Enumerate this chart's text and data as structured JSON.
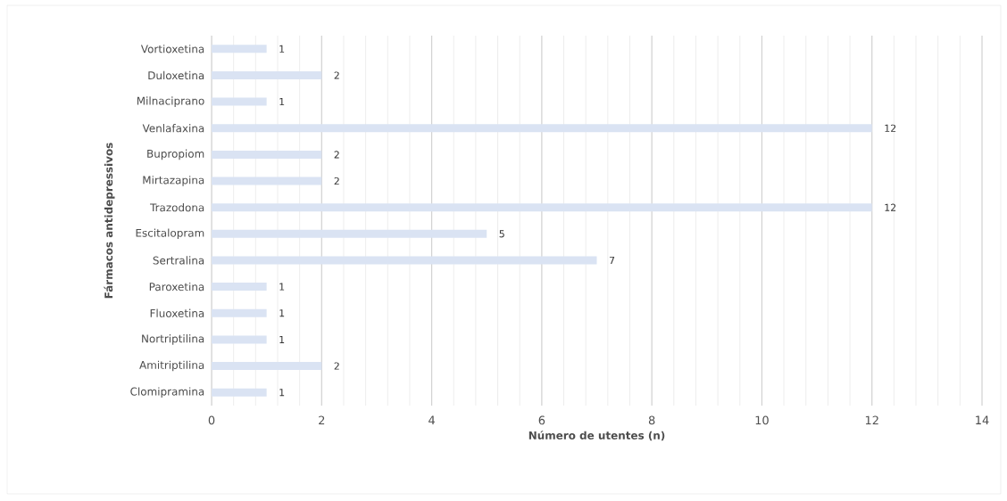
{
  "chart_data": {
    "type": "bar",
    "orientation": "horizontal",
    "xlabel": "Número de utentes (n)",
    "ylabel": "Fármacos antidepressivos",
    "categories": [
      "Vortioxetina",
      "Duloxetina",
      "Milnaciprano",
      "Venlafaxina",
      "Bupropiom",
      "Mirtazapina",
      "Trazodona",
      "Escitalopram",
      "Sertralina",
      "Paroxetina",
      "Fluoxetina",
      "Nortriptilina",
      "Amitriptilina",
      "Clomipramina"
    ],
    "values": [
      1,
      2,
      1,
      12,
      2,
      2,
      12,
      5,
      7,
      1,
      1,
      1,
      2,
      1
    ],
    "color": "#dae3f3",
    "xlim": [
      0,
      14
    ],
    "xticks": [
      0,
      2,
      4,
      6,
      8,
      10,
      12,
      14
    ],
    "grid": "x",
    "data_labels": true
  }
}
